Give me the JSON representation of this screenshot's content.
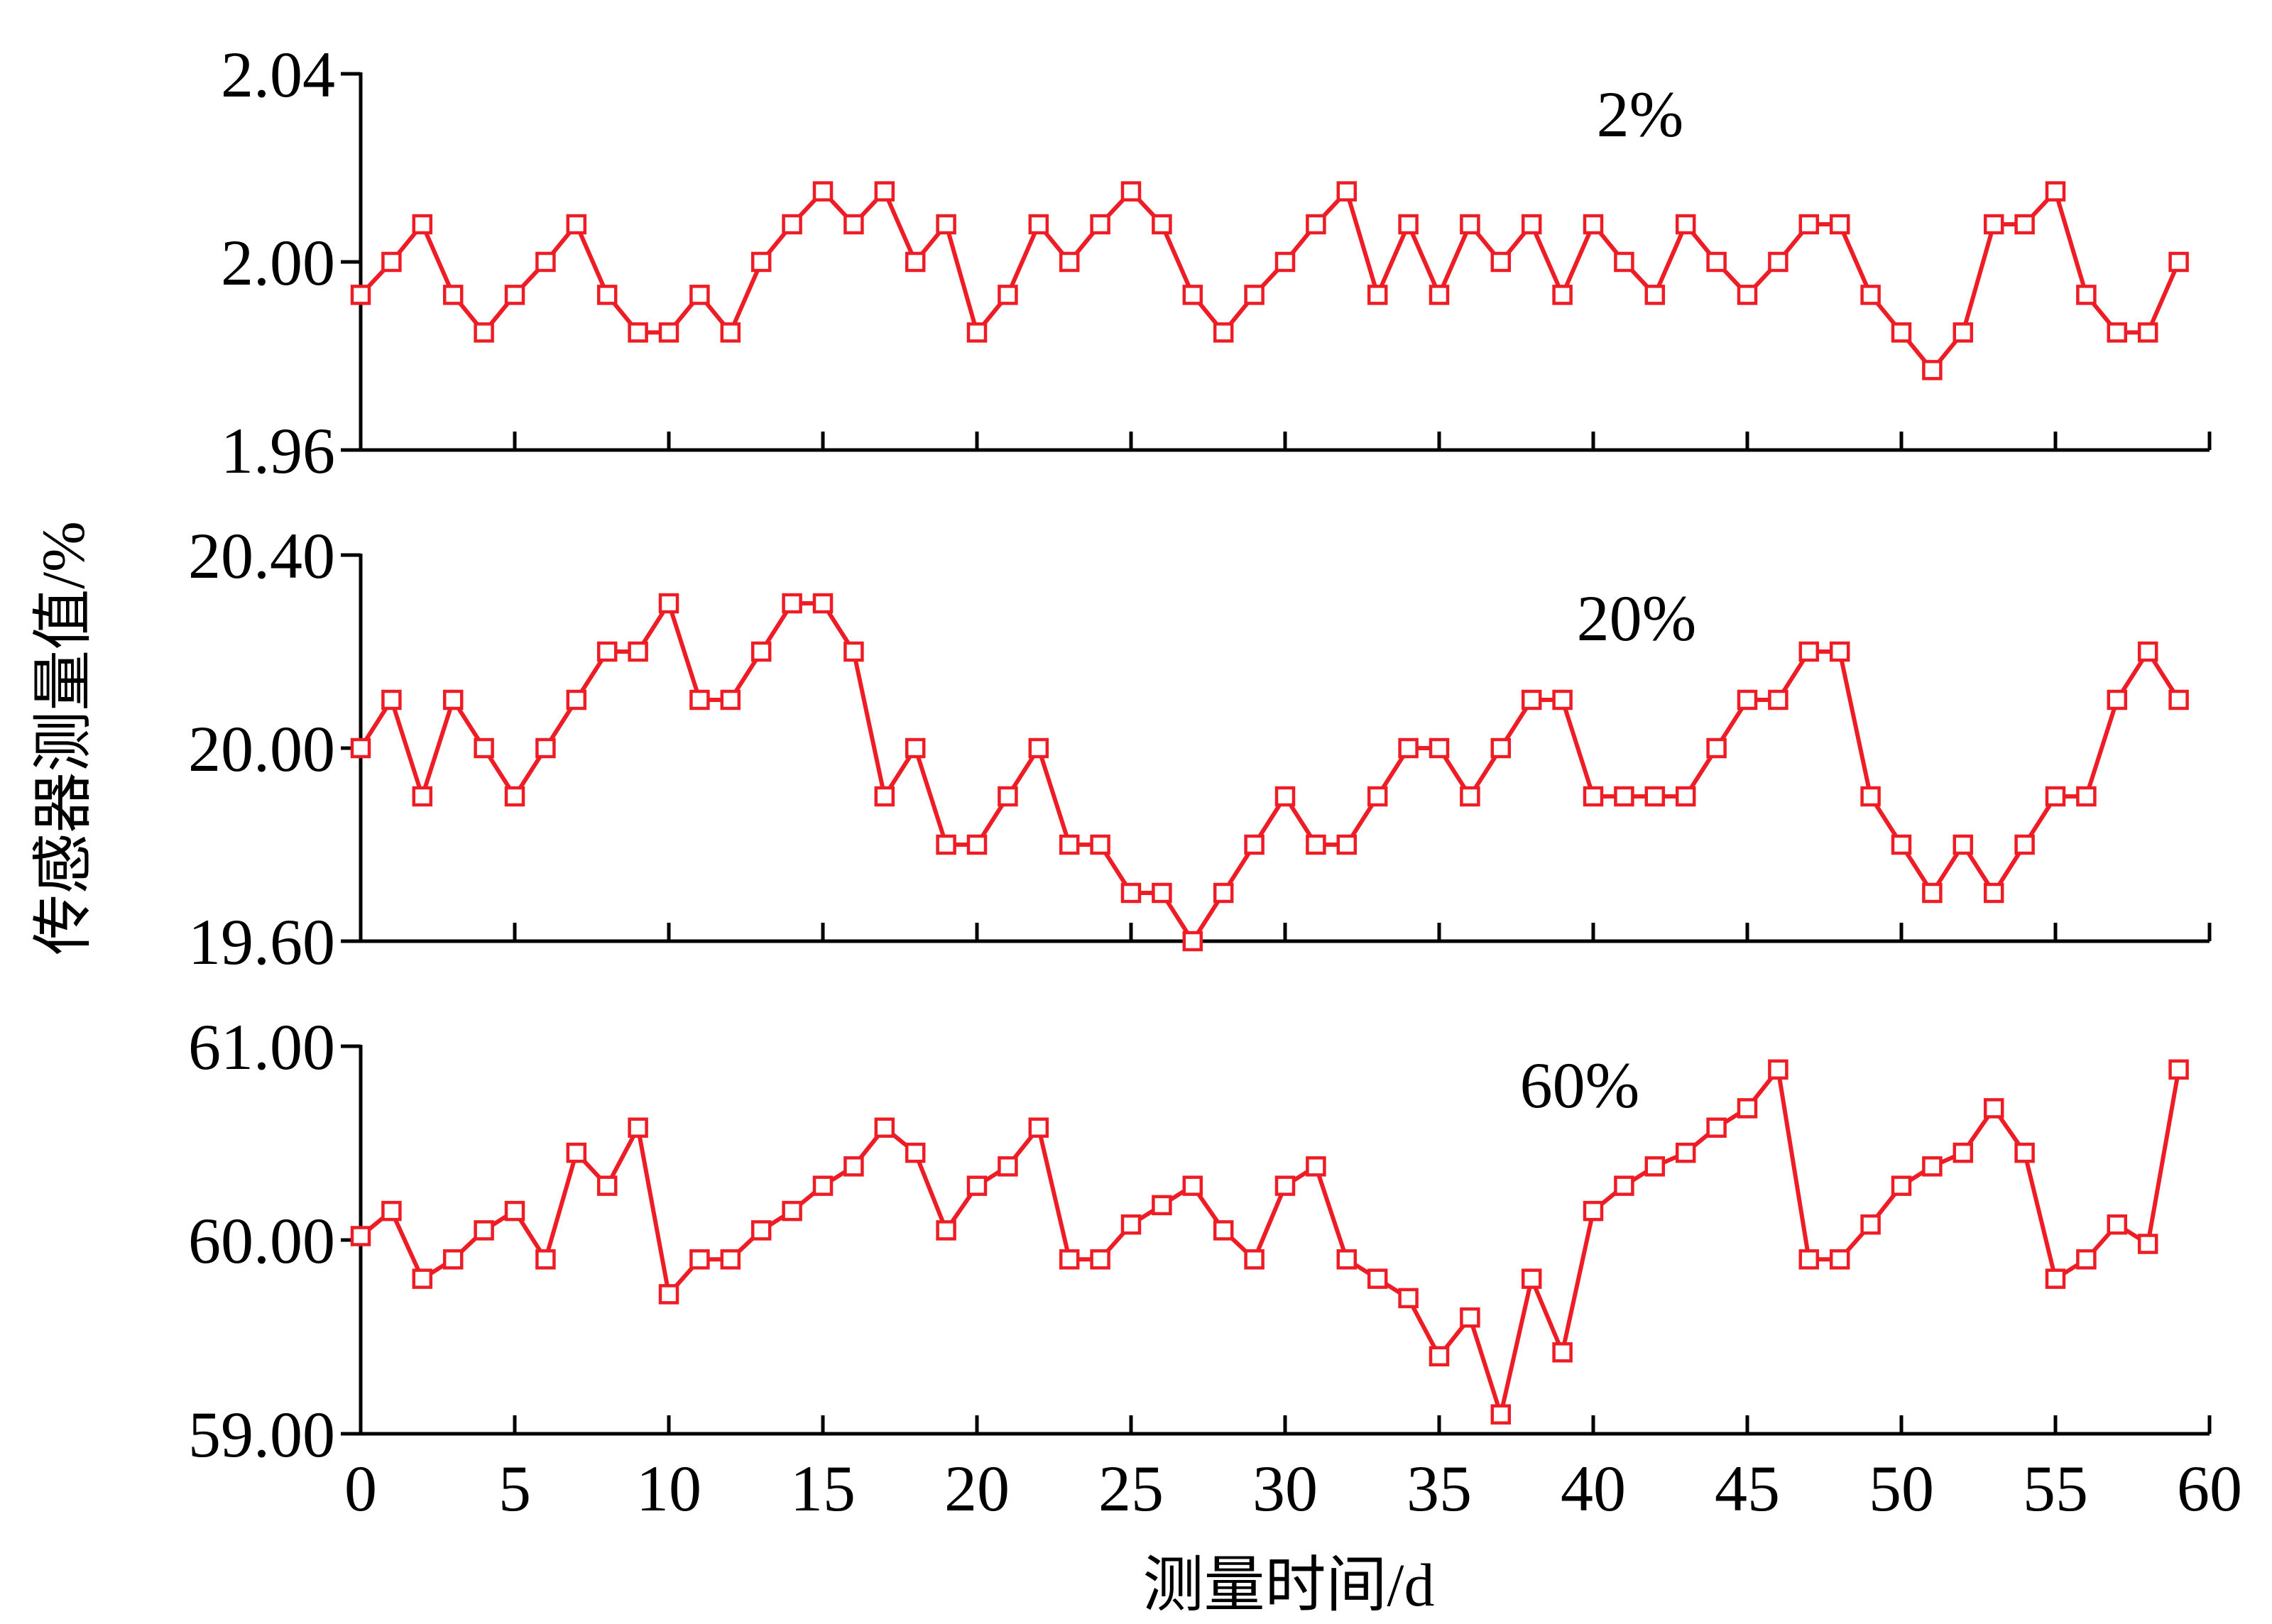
{
  "colors": {
    "series": "#ee1c25",
    "axis": "#000000",
    "background": "#ffffff"
  },
  "chart_data": {
    "type": "line",
    "marker": "open-square",
    "ylabel": "传感器测量值/%",
    "xlabel": "测量时间/d",
    "xlim": [
      0,
      60
    ],
    "xticks": [
      0,
      5,
      10,
      15,
      20,
      25,
      30,
      35,
      40,
      45,
      50,
      55,
      60
    ],
    "x": [
      0,
      1,
      2,
      3,
      4,
      5,
      6,
      7,
      8,
      9,
      10,
      11,
      12,
      13,
      14,
      15,
      16,
      17,
      18,
      19,
      20,
      21,
      22,
      23,
      24,
      25,
      26,
      27,
      28,
      29,
      30,
      31,
      32,
      33,
      34,
      35,
      36,
      37,
      38,
      39,
      40,
      41,
      42,
      43,
      44,
      45,
      46,
      47,
      48,
      49,
      50,
      51,
      52,
      53,
      54,
      55,
      56,
      57,
      58,
      59
    ],
    "panels": [
      {
        "label": "2%",
        "ylim": [
          1.96,
          2.04
        ],
        "yticks": [
          "2.04",
          "2.00",
          "1.96"
        ],
        "values": [
          1.993,
          2.0,
          2.008,
          1.993,
          1.985,
          1.993,
          2.0,
          2.008,
          1.993,
          1.985,
          1.985,
          1.993,
          1.985,
          2.0,
          2.008,
          2.015,
          2.008,
          2.015,
          2.0,
          2.008,
          1.985,
          1.993,
          2.008,
          2.0,
          2.008,
          2.015,
          2.008,
          1.993,
          1.985,
          1.993,
          2.0,
          2.008,
          2.015,
          1.993,
          2.008,
          1.993,
          2.008,
          2.0,
          2.008,
          1.993,
          2.008,
          2.0,
          1.993,
          2.008,
          2.0,
          1.993,
          2.0,
          2.008,
          2.008,
          1.993,
          1.985,
          1.977,
          1.985,
          2.008,
          2.008,
          2.015,
          1.993,
          1.985,
          1.985,
          2.0
        ]
      },
      {
        "label": "20%",
        "ylim": [
          19.6,
          20.4
        ],
        "yticks": [
          "20.40",
          "20.00",
          "19.60"
        ],
        "values": [
          20.0,
          20.1,
          19.9,
          20.1,
          20.0,
          19.9,
          20.0,
          20.1,
          20.2,
          20.2,
          20.3,
          20.1,
          20.1,
          20.2,
          20.3,
          20.3,
          20.2,
          19.9,
          20.0,
          19.8,
          19.8,
          19.9,
          20.0,
          19.8,
          19.8,
          19.7,
          19.7,
          19.6,
          19.7,
          19.8,
          19.9,
          19.8,
          19.8,
          19.9,
          20.0,
          20.0,
          19.9,
          20.0,
          20.1,
          20.1,
          19.9,
          19.9,
          19.9,
          19.9,
          20.0,
          20.1,
          20.1,
          20.2,
          20.2,
          19.9,
          19.8,
          19.7,
          19.8,
          19.7,
          19.8,
          19.9,
          19.9,
          20.1,
          20.2,
          20.1
        ]
      },
      {
        "label": "60%",
        "ylim": [
          59.0,
          61.0
        ],
        "yticks": [
          "61.00",
          "60.00",
          "59.00"
        ],
        "values": [
          60.02,
          60.15,
          59.8,
          59.9,
          60.05,
          60.15,
          59.9,
          60.45,
          60.28,
          60.58,
          59.72,
          59.9,
          59.9,
          60.05,
          60.15,
          60.28,
          60.38,
          60.58,
          60.45,
          60.05,
          60.28,
          60.38,
          60.58,
          59.9,
          59.9,
          60.08,
          60.18,
          60.28,
          60.05,
          59.9,
          60.28,
          60.38,
          59.9,
          59.8,
          59.7,
          59.4,
          59.6,
          59.1,
          59.8,
          59.42,
          60.15,
          60.28,
          60.38,
          60.45,
          60.58,
          60.68,
          60.88,
          59.9,
          59.9,
          60.08,
          60.28,
          60.38,
          60.45,
          60.68,
          60.45,
          59.8,
          59.9,
          60.08,
          59.98,
          60.88
        ]
      }
    ]
  }
}
